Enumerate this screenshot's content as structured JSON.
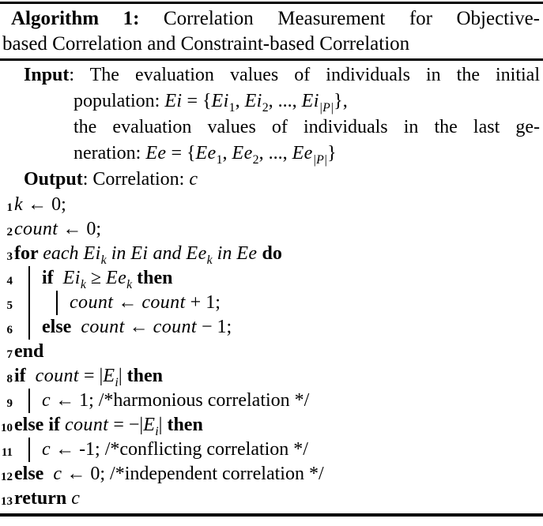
{
  "colors": {
    "text": "#000000",
    "background": "#ffffff",
    "rules": "#000000"
  },
  "caption": {
    "lines": [
      {
        "just": true,
        "segments": [
          {
            "t": "bf",
            "v": "Algorithm 1:"
          },
          {
            "t": "rm",
            "v": " Correlation Measurement for Objective-"
          }
        ]
      },
      {
        "just": false,
        "segments": [
          {
            "t": "rm",
            "v": "based Correlation and Constraint-based Correlation"
          }
        ]
      }
    ]
  },
  "io": {
    "lines": [
      {
        "cls": "label just",
        "segments": [
          {
            "t": "bf",
            "v": "Input"
          },
          {
            "t": "rm",
            "v": ": The evaluation values of individuals in the initial"
          }
        ]
      },
      {
        "cls": "hang",
        "segments": [
          {
            "t": "rm",
            "v": "population: "
          },
          {
            "t": "m",
            "v": "Ei"
          },
          {
            "t": "rm",
            "v": " = {"
          },
          {
            "t": "m",
            "v": "Ei"
          },
          {
            "t": "sub",
            "v": "1"
          },
          {
            "t": "rm",
            "v": ", "
          },
          {
            "t": "m",
            "v": "Ei"
          },
          {
            "t": "sub",
            "v": "2"
          },
          {
            "t": "rm",
            "v": ", ..., "
          },
          {
            "t": "m",
            "v": "Ei"
          },
          {
            "t": "subi",
            "v": "|P|"
          },
          {
            "t": "rm",
            "v": "},"
          }
        ]
      },
      {
        "cls": "hang just",
        "segments": [
          {
            "t": "rm",
            "v": "the evaluation values of individuals in the last ge-"
          }
        ]
      },
      {
        "cls": "hang",
        "segments": [
          {
            "t": "rm",
            "v": "neration: "
          },
          {
            "t": "m",
            "v": "Ee"
          },
          {
            "t": "rm",
            "v": " = {"
          },
          {
            "t": "m",
            "v": "Ee"
          },
          {
            "t": "sub",
            "v": "1"
          },
          {
            "t": "rm",
            "v": ", "
          },
          {
            "t": "m",
            "v": "Ee"
          },
          {
            "t": "sub",
            "v": "2"
          },
          {
            "t": "rm",
            "v": ", ..., "
          },
          {
            "t": "m",
            "v": "Ee"
          },
          {
            "t": "subi",
            "v": "|P|"
          },
          {
            "t": "rm",
            "v": "}"
          }
        ]
      },
      {
        "cls": "label",
        "segments": [
          {
            "t": "bf",
            "v": "Output"
          },
          {
            "t": "rm",
            "v": ": Correlation: "
          },
          {
            "t": "m",
            "v": "c"
          }
        ]
      }
    ]
  },
  "code": {
    "lines": [
      {
        "no": "1",
        "bars": 0,
        "segments": [
          {
            "t": "m",
            "v": "k"
          },
          {
            "t": "rm",
            "v": " ← 0;"
          }
        ]
      },
      {
        "no": "2",
        "bars": 0,
        "segments": [
          {
            "t": "m",
            "v": "count"
          },
          {
            "t": "rm",
            "v": " ← 0;"
          }
        ]
      },
      {
        "no": "3",
        "bars": 0,
        "segments": [
          {
            "t": "bf",
            "v": "for "
          },
          {
            "t": "it",
            "v": "each "
          },
          {
            "t": "m",
            "v": "Ei"
          },
          {
            "t": "subi",
            "v": "k"
          },
          {
            "t": "it",
            "v": " in "
          },
          {
            "t": "m",
            "v": "Ei"
          },
          {
            "t": "it",
            "v": " and "
          },
          {
            "t": "m",
            "v": "Ee"
          },
          {
            "t": "subi",
            "v": "k"
          },
          {
            "t": "it",
            "v": " in "
          },
          {
            "t": "m",
            "v": "Ee"
          },
          {
            "t": "bf",
            "v": " do"
          }
        ]
      },
      {
        "no": "4",
        "bars": 1,
        "segments": [
          {
            "t": "bf",
            "v": "if"
          },
          {
            "t": "rm",
            "v": "  "
          },
          {
            "t": "m",
            "v": "Ei"
          },
          {
            "t": "subi",
            "v": "k"
          },
          {
            "t": "rm",
            "v": " ≥ "
          },
          {
            "t": "m",
            "v": "Ee"
          },
          {
            "t": "subi",
            "v": "k"
          },
          {
            "t": "bf",
            "v": " then"
          }
        ]
      },
      {
        "no": "5",
        "bars": 2,
        "segments": [
          {
            "t": "m",
            "v": "count"
          },
          {
            "t": "rm",
            "v": " ← "
          },
          {
            "t": "m",
            "v": "count"
          },
          {
            "t": "rm",
            "v": " + 1;"
          }
        ]
      },
      {
        "no": "6",
        "bars": 1,
        "segments": [
          {
            "t": "bf",
            "v": "else"
          },
          {
            "t": "rm",
            "v": "  "
          },
          {
            "t": "m",
            "v": "count"
          },
          {
            "t": "rm",
            "v": " ← "
          },
          {
            "t": "m",
            "v": "count"
          },
          {
            "t": "rm",
            "v": " − 1;"
          }
        ]
      },
      {
        "no": "7",
        "bars": 0,
        "segments": [
          {
            "t": "bf",
            "v": "end"
          }
        ]
      },
      {
        "no": "8",
        "bars": 0,
        "segments": [
          {
            "t": "bf",
            "v": "if"
          },
          {
            "t": "rm",
            "v": "  "
          },
          {
            "t": "m",
            "v": "count"
          },
          {
            "t": "rm",
            "v": " = |"
          },
          {
            "t": "m",
            "v": "E"
          },
          {
            "t": "subi",
            "v": "i"
          },
          {
            "t": "rm",
            "v": "|"
          },
          {
            "t": "bf",
            "v": " then"
          }
        ]
      },
      {
        "no": "9",
        "bars": 1,
        "segments": [
          {
            "t": "m",
            "v": "c"
          },
          {
            "t": "rm",
            "v": " ← 1; /*harmonious correlation */"
          }
        ]
      },
      {
        "no": "10",
        "bars": 0,
        "segments": [
          {
            "t": "bf",
            "v": "else if "
          },
          {
            "t": "m",
            "v": "count"
          },
          {
            "t": "rm",
            "v": " = −|"
          },
          {
            "t": "m",
            "v": "E"
          },
          {
            "t": "subi",
            "v": "i"
          },
          {
            "t": "rm",
            "v": "|"
          },
          {
            "t": "bf",
            "v": " then"
          }
        ]
      },
      {
        "no": "11",
        "bars": 1,
        "segments": [
          {
            "t": "m",
            "v": "c"
          },
          {
            "t": "rm",
            "v": " ← -1; /*conflicting correlation */"
          }
        ]
      },
      {
        "no": "12",
        "bars": 0,
        "segments": [
          {
            "t": "bf",
            "v": "else"
          },
          {
            "t": "rm",
            "v": "  "
          },
          {
            "t": "m",
            "v": "c"
          },
          {
            "t": "rm",
            "v": " ← 0; /*independent correlation */"
          }
        ]
      },
      {
        "no": "13",
        "bars": 0,
        "segments": [
          {
            "t": "bf",
            "v": "return "
          },
          {
            "t": "m",
            "v": "c"
          }
        ]
      }
    ]
  }
}
